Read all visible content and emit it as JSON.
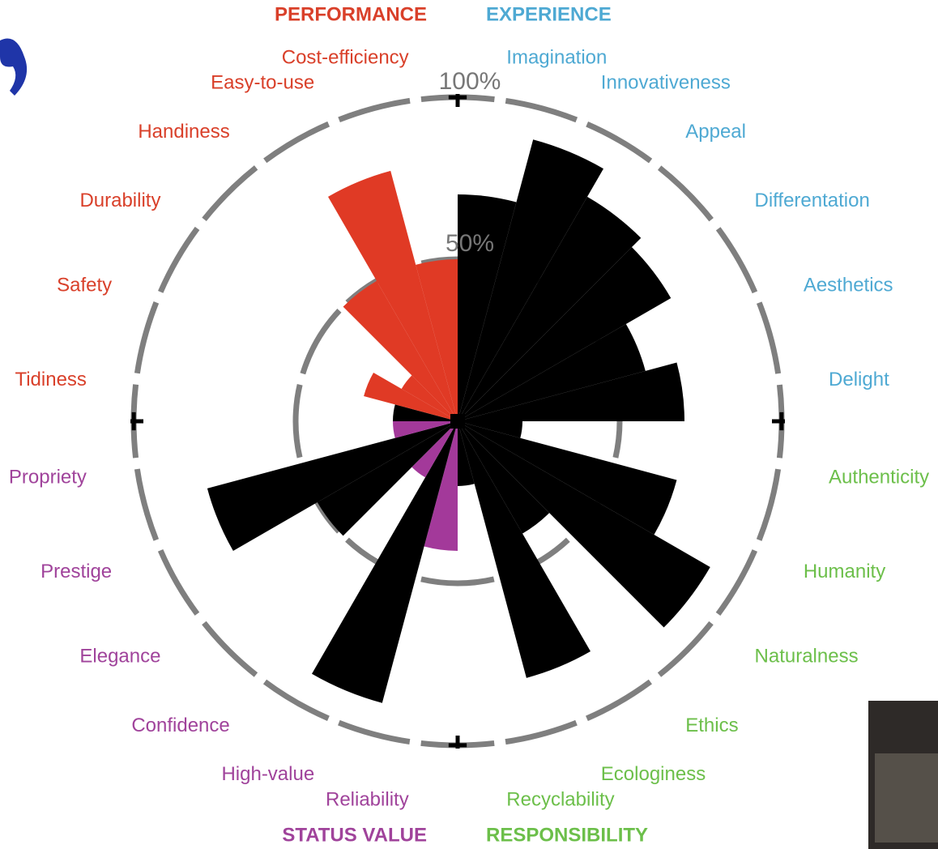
{
  "chart_data": {
    "type": "polar_bar",
    "rlim": [
      0,
      100
    ],
    "rticks": [
      {
        "value": 50,
        "label": "50%"
      },
      {
        "value": 100,
        "label": "100%"
      }
    ],
    "groups": [
      {
        "name": "EXPERIENCE",
        "color": "#4ea9d3",
        "categories": [
          "Imagination",
          "Innovativeness",
          "Appeal",
          "Differentation",
          "Aesthetics",
          "Delight"
        ],
        "values": [
          70,
          90,
          80,
          76,
          60,
          70
        ],
        "bar_colors": [
          "#000000",
          "#000000",
          "#000000",
          "#000000",
          "#000000",
          "#000000"
        ]
      },
      {
        "name": "RESPONSIBILITY",
        "color": "#6cbf4a",
        "categories": [
          "Authenticity",
          "Humanity",
          "Naturalness",
          "Ethics",
          "Ecologiness",
          "Recyclability"
        ],
        "values": [
          20,
          70,
          90,
          40,
          82,
          20
        ],
        "bar_colors": [
          "#000000",
          "#000000",
          "#000000",
          "#000000",
          "#000000",
          "#000000"
        ]
      },
      {
        "name": "STATUS VALUE",
        "color": "#a0439b",
        "categories": [
          "Reliability",
          "High-value",
          "Confidence",
          "Elegance",
          "Prestige",
          "Propriety"
        ],
        "values": [
          40,
          90,
          20,
          50,
          80,
          20
        ],
        "bar_colors": [
          "#a3399a",
          "#000000",
          "#a3399a",
          "#000000",
          "#000000",
          "#a3399a"
        ]
      },
      {
        "name": "PERFORMANCE",
        "color": "#d9402a",
        "categories": [
          "Tidiness",
          "Safety",
          "Durability",
          "Handiness",
          "Easy-to-use",
          "Cost-efficiency"
        ],
        "values": [
          20,
          30,
          20,
          50,
          80,
          50
        ],
        "bar_colors": [
          "#000000",
          "#e03a25",
          "#e03a25",
          "#e03a25",
          "#e03a25",
          "#e03a25"
        ]
      }
    ]
  }
}
